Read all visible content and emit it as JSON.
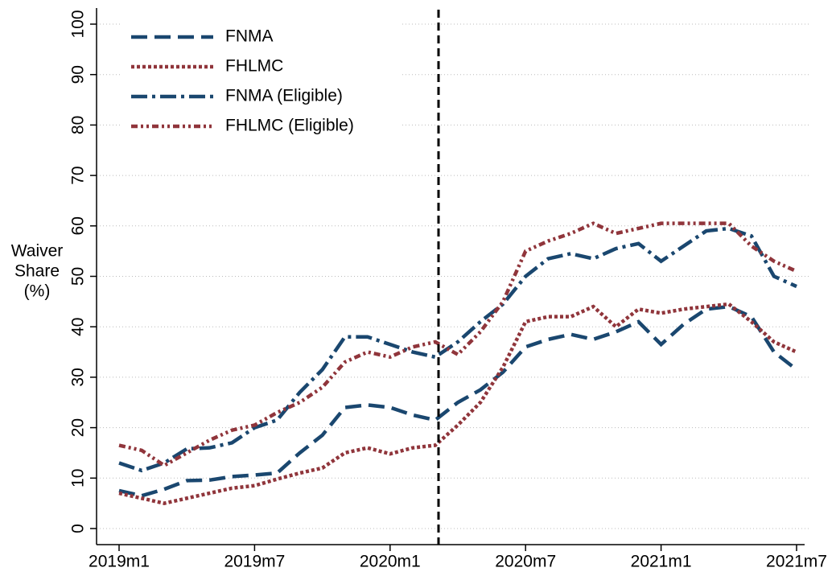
{
  "chart_data": {
    "type": "line",
    "ylabel": [
      "Waiver",
      "Share",
      "(%)"
    ],
    "categories": [
      "2019m1",
      null,
      null,
      null,
      null,
      null,
      "2019m7",
      null,
      null,
      null,
      null,
      null,
      "2020m1",
      null,
      null,
      null,
      null,
      null,
      "2020m7",
      null,
      null,
      null,
      null,
      null,
      "2021m1",
      null,
      null,
      null,
      null,
      null,
      "2021m7"
    ],
    "series": [
      {
        "name": "FNMA",
        "color": "#1a476f",
        "dash": "dashed",
        "values": [
          7.5,
          6.5,
          7.8,
          9.5,
          9.6,
          10.3,
          10.6,
          11,
          15,
          18.5,
          24,
          24.5,
          24,
          22.5,
          21.5,
          25,
          27.5,
          31,
          36,
          37.5,
          38.5,
          37.5,
          39,
          41,
          36.5,
          40.5,
          43.5,
          44,
          42,
          35,
          31.5
        ]
      },
      {
        "name": "FHLMC",
        "color": "#90353b",
        "dash": "dotted",
        "values": [
          7,
          6,
          5,
          6,
          7,
          8,
          8.5,
          9.8,
          11,
          12,
          15,
          16,
          14.8,
          16,
          16.5,
          20.5,
          25,
          32,
          41,
          42,
          42,
          44,
          40,
          43.5,
          42.7,
          43.5,
          44,
          44.5,
          41,
          37,
          35
        ]
      },
      {
        "name": "FNMA (Eligible)",
        "color": "#1a476f",
        "dash": "dashdot",
        "values": [
          13,
          11.5,
          13,
          15.8,
          16,
          17,
          20,
          21.5,
          27,
          31.5,
          38,
          38,
          36.5,
          35,
          34,
          37,
          41,
          44.5,
          50,
          53.5,
          54.5,
          53.5,
          55.5,
          56.5,
          53,
          56,
          59,
          59.5,
          58,
          50,
          48
        ]
      },
      {
        "name": "FHLMC (Eligible)",
        "color": "#90353b",
        "dash": "dashdotdot",
        "values": [
          16.5,
          15.5,
          12.5,
          15,
          17.5,
          19.5,
          20.5,
          23,
          25,
          28,
          33,
          35,
          34,
          36,
          37,
          34.5,
          39,
          45,
          55,
          57,
          58.5,
          60.5,
          58.5,
          59.5,
          60.5,
          60.5,
          60.5,
          60.5,
          56,
          53,
          51
        ]
      }
    ],
    "ylim": [
      0,
      100
    ],
    "yticks": [
      0,
      10,
      20,
      30,
      40,
      50,
      60,
      70,
      80,
      90,
      100
    ],
    "grid": true,
    "legend": "upper-left"
  }
}
